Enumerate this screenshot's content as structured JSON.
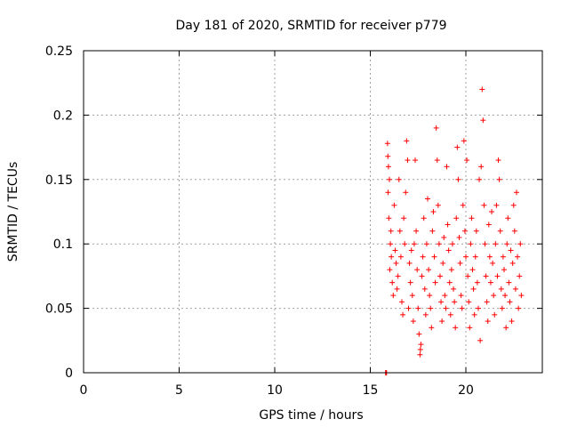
{
  "chart_data": {
    "type": "scatter",
    "title": "Day 181 of 2020, SRMTID for receiver p779",
    "xlabel": "GPS time / hours",
    "ylabel": "SRMTID / TECUs",
    "xlim": [
      0,
      24
    ],
    "ylim": [
      0,
      0.25
    ],
    "xticks": [
      0,
      5,
      10,
      15,
      20
    ],
    "yticks": [
      0,
      0.05,
      0.1,
      0.15,
      0.2,
      0.25
    ],
    "xtick_labels": [
      "0",
      "5",
      "10",
      "15",
      "20"
    ],
    "ytick_labels": [
      "0",
      "0.05",
      "0.1",
      "0.15",
      "0.2",
      "0.25"
    ],
    "grid": true,
    "marker": "+",
    "series": [
      {
        "name": "SRMTID",
        "color": "#ff0000",
        "data_range": {
          "x": [
            15.8,
            22.9
          ],
          "y": [
            0.0,
            0.22
          ]
        },
        "points": [
          [
            15.8,
            0.0
          ],
          [
            15.82,
            0.0
          ],
          [
            15.85,
            0.0
          ],
          [
            15.9,
            0.178
          ],
          [
            15.92,
            0.168
          ],
          [
            15.95,
            0.16
          ],
          [
            16.0,
            0.15
          ],
          [
            15.93,
            0.14
          ],
          [
            15.97,
            0.12
          ],
          [
            16.05,
            0.1
          ],
          [
            16.1,
            0.09
          ],
          [
            16.02,
            0.08
          ],
          [
            16.15,
            0.07
          ],
          [
            16.2,
            0.06
          ],
          [
            16.08,
            0.11
          ],
          [
            16.25,
            0.13
          ],
          [
            16.3,
            0.095
          ],
          [
            16.35,
            0.085
          ],
          [
            16.4,
            0.065
          ],
          [
            16.45,
            0.075
          ],
          [
            16.5,
            0.15
          ],
          [
            16.55,
            0.11
          ],
          [
            16.6,
            0.09
          ],
          [
            16.65,
            0.055
          ],
          [
            16.7,
            0.045
          ],
          [
            16.75,
            0.12
          ],
          [
            16.8,
            0.1
          ],
          [
            16.85,
            0.14
          ],
          [
            16.9,
            0.18
          ],
          [
            16.95,
            0.165
          ],
          [
            17.0,
            0.05
          ],
          [
            17.05,
            0.085
          ],
          [
            17.1,
            0.07
          ],
          [
            17.15,
            0.095
          ],
          [
            17.2,
            0.06
          ],
          [
            17.25,
            0.04
          ],
          [
            17.3,
            0.1
          ],
          [
            17.35,
            0.165
          ],
          [
            17.4,
            0.11
          ],
          [
            17.45,
            0.08
          ],
          [
            17.5,
            0.05
          ],
          [
            17.55,
            0.03
          ],
          [
            17.6,
            0.014
          ],
          [
            17.62,
            0.018
          ],
          [
            17.65,
            0.022
          ],
          [
            17.7,
            0.075
          ],
          [
            17.75,
            0.09
          ],
          [
            17.8,
            0.12
          ],
          [
            17.85,
            0.065
          ],
          [
            17.9,
            0.045
          ],
          [
            17.95,
            0.1
          ],
          [
            18.0,
            0.135
          ],
          [
            18.05,
            0.08
          ],
          [
            18.1,
            0.06
          ],
          [
            18.15,
            0.05
          ],
          [
            18.2,
            0.035
          ],
          [
            18.25,
            0.11
          ],
          [
            18.3,
            0.125
          ],
          [
            18.35,
            0.09
          ],
          [
            18.4,
            0.07
          ],
          [
            18.45,
            0.19
          ],
          [
            18.5,
            0.165
          ],
          [
            18.55,
            0.13
          ],
          [
            18.6,
            0.1
          ],
          [
            18.65,
            0.075
          ],
          [
            18.7,
            0.055
          ],
          [
            18.75,
            0.04
          ],
          [
            18.8,
            0.085
          ],
          [
            18.85,
            0.105
          ],
          [
            18.9,
            0.06
          ],
          [
            18.95,
            0.05
          ],
          [
            19.0,
            0.16
          ],
          [
            19.05,
            0.115
          ],
          [
            19.1,
            0.095
          ],
          [
            19.15,
            0.07
          ],
          [
            19.2,
            0.045
          ],
          [
            19.25,
            0.08
          ],
          [
            19.3,
            0.1
          ],
          [
            19.35,
            0.065
          ],
          [
            19.4,
            0.055
          ],
          [
            19.45,
            0.035
          ],
          [
            19.5,
            0.12
          ],
          [
            19.55,
            0.175
          ],
          [
            19.6,
            0.15
          ],
          [
            19.65,
            0.105
          ],
          [
            19.7,
            0.085
          ],
          [
            19.75,
            0.06
          ],
          [
            19.8,
            0.05
          ],
          [
            19.85,
            0.13
          ],
          [
            19.9,
            0.18
          ],
          [
            19.95,
            0.11
          ],
          [
            20.0,
            0.09
          ],
          [
            20.05,
            0.165
          ],
          [
            20.1,
            0.075
          ],
          [
            20.15,
            0.055
          ],
          [
            20.2,
            0.035
          ],
          [
            20.25,
            0.1
          ],
          [
            20.3,
            0.12
          ],
          [
            20.35,
            0.08
          ],
          [
            20.4,
            0.065
          ],
          [
            20.45,
            0.045
          ],
          [
            20.5,
            0.09
          ],
          [
            20.55,
            0.11
          ],
          [
            20.6,
            0.07
          ],
          [
            20.65,
            0.05
          ],
          [
            20.7,
            0.15
          ],
          [
            20.75,
            0.025
          ],
          [
            20.8,
            0.16
          ],
          [
            20.85,
            0.22
          ],
          [
            20.9,
            0.196
          ],
          [
            20.95,
            0.13
          ],
          [
            21.0,
            0.1
          ],
          [
            21.05,
            0.075
          ],
          [
            21.1,
            0.055
          ],
          [
            21.15,
            0.04
          ],
          [
            21.2,
            0.115
          ],
          [
            21.25,
            0.09
          ],
          [
            21.3,
            0.07
          ],
          [
            21.35,
            0.125
          ],
          [
            21.4,
            0.085
          ],
          [
            21.45,
            0.06
          ],
          [
            21.5,
            0.045
          ],
          [
            21.55,
            0.1
          ],
          [
            21.6,
            0.13
          ],
          [
            21.65,
            0.075
          ],
          [
            21.7,
            0.165
          ],
          [
            21.75,
            0.15
          ],
          [
            21.8,
            0.11
          ],
          [
            21.85,
            0.065
          ],
          [
            21.9,
            0.05
          ],
          [
            21.95,
            0.09
          ],
          [
            22.0,
            0.08
          ],
          [
            22.05,
            0.06
          ],
          [
            22.1,
            0.035
          ],
          [
            22.15,
            0.1
          ],
          [
            22.2,
            0.12
          ],
          [
            22.25,
            0.07
          ],
          [
            22.3,
            0.055
          ],
          [
            22.35,
            0.095
          ],
          [
            22.4,
            0.04
          ],
          [
            22.45,
            0.085
          ],
          [
            22.5,
            0.13
          ],
          [
            22.55,
            0.11
          ],
          [
            22.6,
            0.065
          ],
          [
            22.65,
            0.14
          ],
          [
            22.7,
            0.09
          ],
          [
            22.75,
            0.05
          ],
          [
            22.8,
            0.075
          ],
          [
            22.85,
            0.1
          ],
          [
            22.9,
            0.06
          ]
        ]
      }
    ]
  },
  "colors": {
    "series": "#ff0000",
    "grid": "#a0a0a0",
    "axes": "#000000",
    "background": "#ffffff"
  }
}
